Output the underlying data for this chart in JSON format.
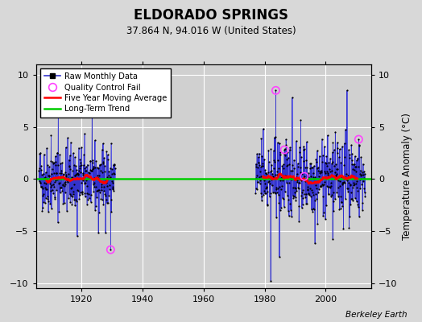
{
  "title": "ELDORADO SPRINGS",
  "subtitle": "37.864 N, 94.016 W (United States)",
  "ylabel": "Temperature Anomaly (°C)",
  "attribution": "Berkeley Earth",
  "ylim": [
    -10.5,
    11.0
  ],
  "xlim": [
    1905,
    2015
  ],
  "yticks": [
    -10,
    -5,
    0,
    5,
    10
  ],
  "xticks": [
    1920,
    1940,
    1960,
    1980,
    2000
  ],
  "background_color": "#d8d8d8",
  "plot_bg_color": "#d0d0d0",
  "grid_color": "#ffffff",
  "long_term_trend_y": 0.05,
  "seed": 42,
  "early_period_start": 1906,
  "early_period_end": 1930.917,
  "late_period_start": 1977,
  "late_period_end": 2012.917
}
